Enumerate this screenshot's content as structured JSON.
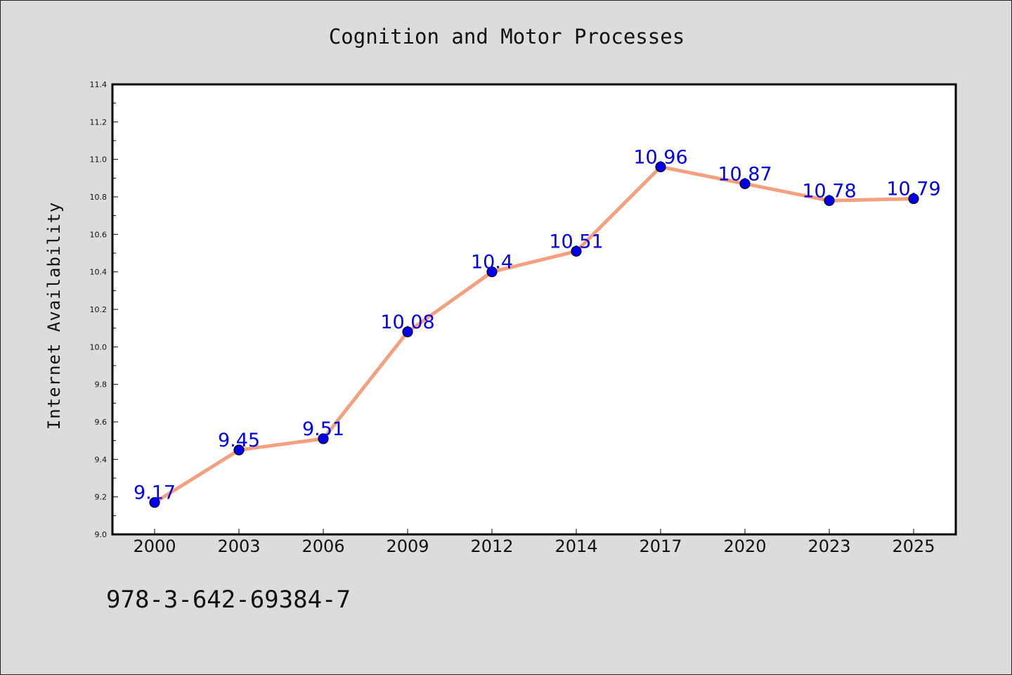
{
  "page": {
    "title": "Cognition and Motor Processes",
    "footnote": "978-3-642-69384-7"
  },
  "colors": {
    "background": "#dcdcdc",
    "plot_area": "#ffffff",
    "line": "#f4a07f",
    "marker": "#0000ee",
    "data_label": "#0000ee",
    "axis": "#000000"
  },
  "chart_data": {
    "type": "line",
    "title": "Cognition and Motor Processes",
    "xlabel": "",
    "ylabel": "Internet Availability",
    "categories": [
      "2000",
      "2003",
      "2006",
      "2009",
      "2012",
      "2014",
      "2017",
      "2020",
      "2023",
      "2025"
    ],
    "series": [
      {
        "values": [
          9.17,
          9.45,
          9.51,
          10.08,
          10.4,
          10.51,
          10.96,
          10.87,
          10.78,
          10.79
        ]
      }
    ],
    "data_labels": [
      "9.17",
      "9.45",
      "9.51",
      "10.08",
      "10.4",
      "10.51",
      "10.96",
      "10.87",
      "10.78",
      "10.79"
    ],
    "ylim": [
      9.0,
      11.4
    ],
    "yticks": [
      "9.0",
      "9.2",
      "9.4",
      "9.6",
      "9.8",
      "10.0",
      "10.2",
      "10.4",
      "10.6",
      "10.8",
      "11.0",
      "11.2",
      "11.4"
    ],
    "grid": false,
    "legend": "none"
  }
}
